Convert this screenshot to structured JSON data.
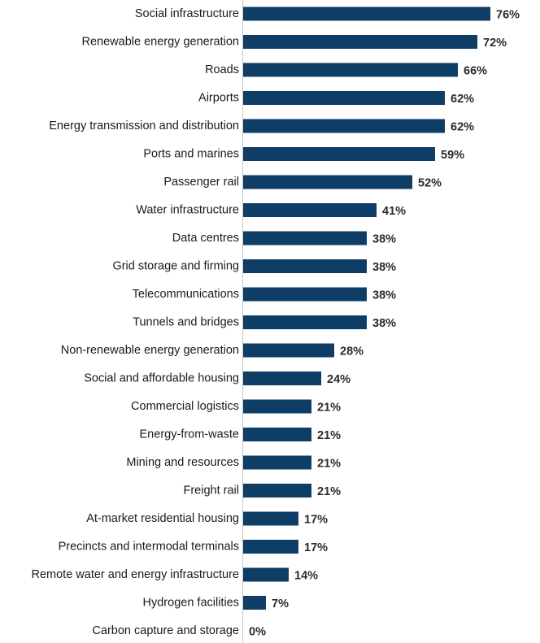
{
  "chart_data": {
    "type": "bar",
    "orientation": "horizontal",
    "title": "",
    "xlabel": "",
    "ylabel": "",
    "value_suffix": "%",
    "xlim": [
      0,
      100
    ],
    "grid": false,
    "legend": "none",
    "bar_color": "#0e3d66",
    "axis_color": "#c8c8c8",
    "categories": [
      "Social infrastructure",
      "Renewable energy generation",
      "Roads",
      "Airports",
      "Energy transmission and distribution",
      "Ports and marines",
      "Passenger rail",
      "Water infrastructure",
      "Data centres",
      "Grid storage and firming",
      "Telecommunications",
      "Tunnels and bridges",
      "Non-renewable energy generation",
      "Social and affordable housing",
      "Commercial logistics",
      "Energy-from-waste",
      "Mining and resources",
      "Freight rail",
      "At-market residential housing",
      "Precincts and intermodal terminals",
      "Remote water and energy infrastructure",
      "Hydrogen facilities",
      "Carbon capture and storage"
    ],
    "values": [
      76,
      72,
      66,
      62,
      62,
      59,
      52,
      41,
      38,
      38,
      38,
      38,
      28,
      24,
      21,
      21,
      21,
      21,
      17,
      17,
      14,
      7,
      0
    ],
    "value_labels": [
      "76%",
      "72%",
      "66%",
      "62%",
      "62%",
      "59%",
      "52%",
      "41%",
      "38%",
      "38%",
      "38%",
      "38%",
      "28%",
      "24%",
      "21%",
      "21%",
      "21%",
      "21%",
      "17%",
      "17%",
      "14%",
      "7%",
      "0%"
    ]
  }
}
